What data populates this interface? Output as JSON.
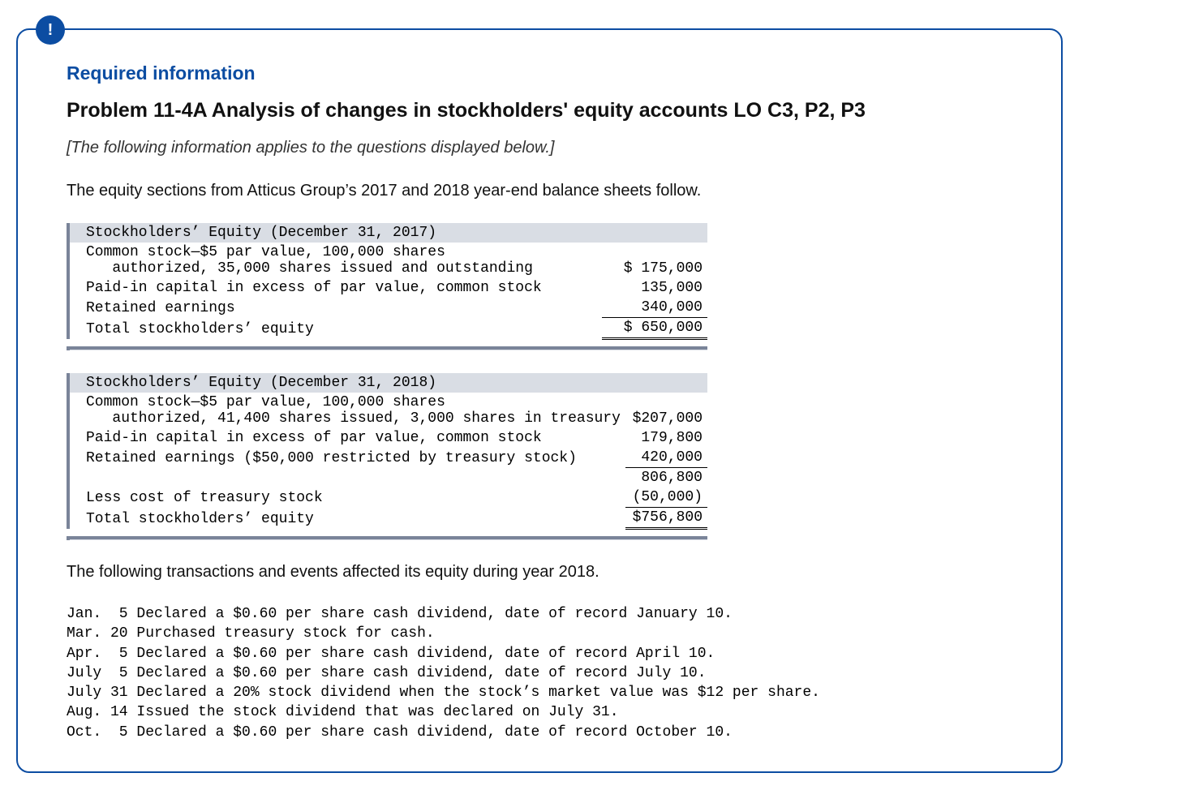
{
  "badge_glyph": "!",
  "required_label": "Required information",
  "problem_title": "Problem 11-4A Analysis of changes in stockholders' equity accounts LO C3, P2, P3",
  "note_text": "[The following information applies to the questions displayed below.]",
  "intro_text": "The equity sections from Atticus Group’s 2017 and 2018 year-end balance sheets follow.",
  "table2017": {
    "header": "Stockholders’ Equity (December 31, 2017)",
    "rows": [
      {
        "label": "Common stock—$5 par value, 100,000 shares\n   authorized, 35,000 shares issued and outstanding",
        "amount": "$ 175,000",
        "rule": ""
      },
      {
        "label": "Paid-in capital in excess of par value, common stock",
        "amount": "135,000",
        "rule": ""
      },
      {
        "label": "Retained earnings",
        "amount": "340,000",
        "rule": "uline"
      },
      {
        "label": "Total stockholders’ equity",
        "amount": "$ 650,000",
        "rule": "dbl"
      }
    ]
  },
  "table2018": {
    "header": "Stockholders’ Equity (December 31, 2018)",
    "rows": [
      {
        "label": "Common stock—$5 par value, 100,000 shares\n   authorized, 41,400 shares issued, 3,000 shares in treasury",
        "amount": "$207,000",
        "rule": ""
      },
      {
        "label": "Paid-in capital in excess of par value, common stock",
        "amount": "179,800",
        "rule": ""
      },
      {
        "label": "Retained earnings ($50,000 restricted by treasury stock)",
        "amount": "420,000",
        "rule": "uline"
      },
      {
        "label": "",
        "amount": "806,800",
        "rule": ""
      },
      {
        "label": "Less cost of treasury stock",
        "amount": "(50,000)",
        "rule": "uline"
      },
      {
        "label": "Total stockholders’ equity",
        "amount": "$756,800",
        "rule": "dbl"
      }
    ]
  },
  "events_intro": "The following transactions and events affected its equity during year 2018.",
  "events": [
    "Jan.  5 Declared a $0.60 per share cash dividend, date of record January 10.",
    "Mar. 20 Purchased treasury stock for cash.",
    "Apr.  5 Declared a $0.60 per share cash dividend, date of record April 10.",
    "July  5 Declared a $0.60 per share cash dividend, date of record July 10.",
    "July 31 Declared a 20% stock dividend when the stock’s market value was $12 per share.",
    "Aug. 14 Issued the stock dividend that was declared on July 31.",
    "Oct.  5 Declared a $0.60 per share cash dividend, date of record October 10."
  ],
  "colors": {
    "accent": "#0c4da2",
    "header_bg": "#d9dde4",
    "header_border": "#7a8499"
  }
}
